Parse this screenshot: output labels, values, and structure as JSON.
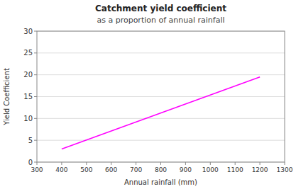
{
  "chart_data": {
    "type": "line",
    "title": "Catchment yield coefficient",
    "subtitle": "as a proportion of annual rainfall",
    "x_label": "Annual rainfall (mm)",
    "y_label": "Yield Coefficient",
    "x": [
      400,
      1200
    ],
    "values": [
      3,
      19.5
    ],
    "color": "#FF00FF",
    "xlim": [
      300,
      1300
    ],
    "ylim": [
      0,
      30
    ],
    "xticks": [
      300,
      400,
      500,
      600,
      700,
      800,
      900,
      1000,
      1100,
      1200,
      1300
    ],
    "yticks": [
      0,
      5,
      10,
      15,
      20,
      25,
      30
    ],
    "grid": "y"
  }
}
